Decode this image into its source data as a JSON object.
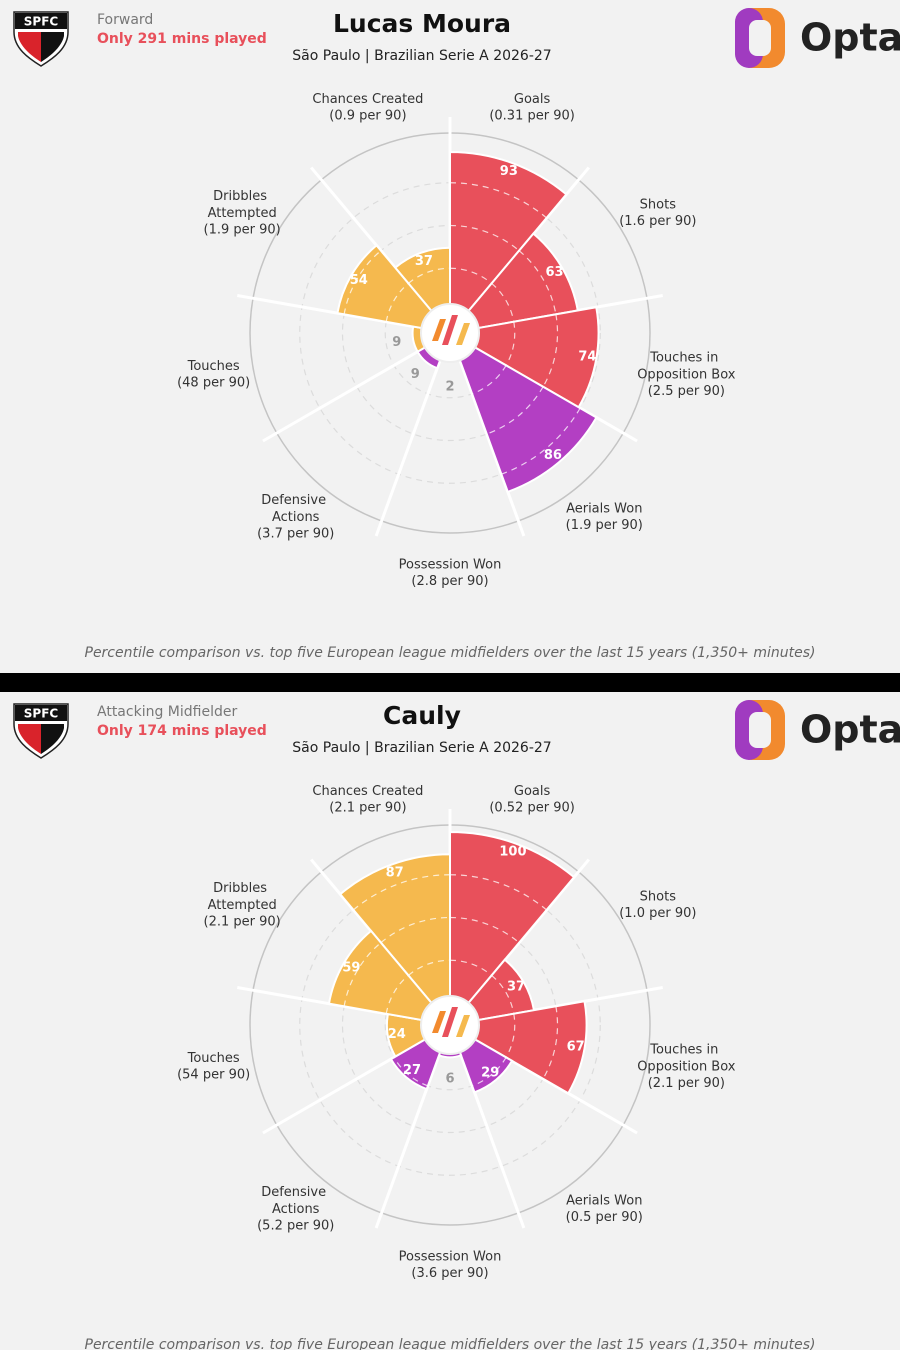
{
  "chart_data": [
    {
      "type": "pizza",
      "badge": "SPFC",
      "position": "Forward",
      "minutes_note": "Only 291 mins played",
      "title": "Lucas Moura",
      "subtitle": "São Paulo | Brazilian Serie A 2026-27",
      "brand": "Opta",
      "categories": [
        "Chances Created",
        "Goals",
        "Shots",
        "Touches in Opposition Box",
        "Aerials Won",
        "Possession Won",
        "Defensive Actions",
        "Touches",
        "Dribbles Attempted"
      ],
      "per90": [
        "(0.9 per 90)",
        "(0.31 per 90)",
        "(1.6 per 90)",
        "(2.5 per 90)",
        "(1.9 per 90)",
        "(2.8 per 90)",
        "(3.7 per 90)",
        "(48 per 90)",
        "(1.9 per 90)"
      ],
      "values": [
        37,
        93,
        63,
        74,
        86,
        2,
        9,
        9,
        54
      ],
      "colors": [
        "#f5b94e",
        "#e8505b",
        "#e8505b",
        "#e8505b",
        "#b33fc3",
        "#b33fc3",
        "#b33fc3",
        "#f5b94e",
        "#f5b94e"
      ],
      "rlim": [
        0,
        100
      ],
      "rticks": [
        25,
        50,
        75
      ],
      "note": "Percentile comparison vs. top five European league midfielders over the last 15 years (1,350+ minutes)"
    },
    {
      "type": "pizza",
      "badge": "SPFC",
      "position": "Attacking Midfielder",
      "minutes_note": "Only 174 mins played",
      "title": "Cauly",
      "subtitle": "São Paulo | Brazilian Serie A 2026-27",
      "brand": "Opta",
      "categories": [
        "Chances Created",
        "Goals",
        "Shots",
        "Touches in Opposition Box",
        "Aerials Won",
        "Possession Won",
        "Defensive Actions",
        "Touches",
        "Dribbles Attempted"
      ],
      "per90": [
        "(2.1 per 90)",
        "(0.52 per 90)",
        "(1.0 per 90)",
        "(2.1 per 90)",
        "(0.5 per 90)",
        "(3.6 per 90)",
        "(5.2 per 90)",
        "(54 per 90)",
        "(2.1 per 90)"
      ],
      "values": [
        87,
        100,
        37,
        67,
        29,
        6,
        27,
        24,
        59
      ],
      "colors": [
        "#f5b94e",
        "#e8505b",
        "#e8505b",
        "#e8505b",
        "#b33fc3",
        "#b33fc3",
        "#b33fc3",
        "#f5b94e",
        "#f5b94e"
      ],
      "rlim": [
        0,
        100
      ],
      "rticks": [
        25,
        50,
        75
      ],
      "note": "Percentile comparison vs. top five European league midfielders over the last 15 years (1,350+ minutes)"
    }
  ]
}
